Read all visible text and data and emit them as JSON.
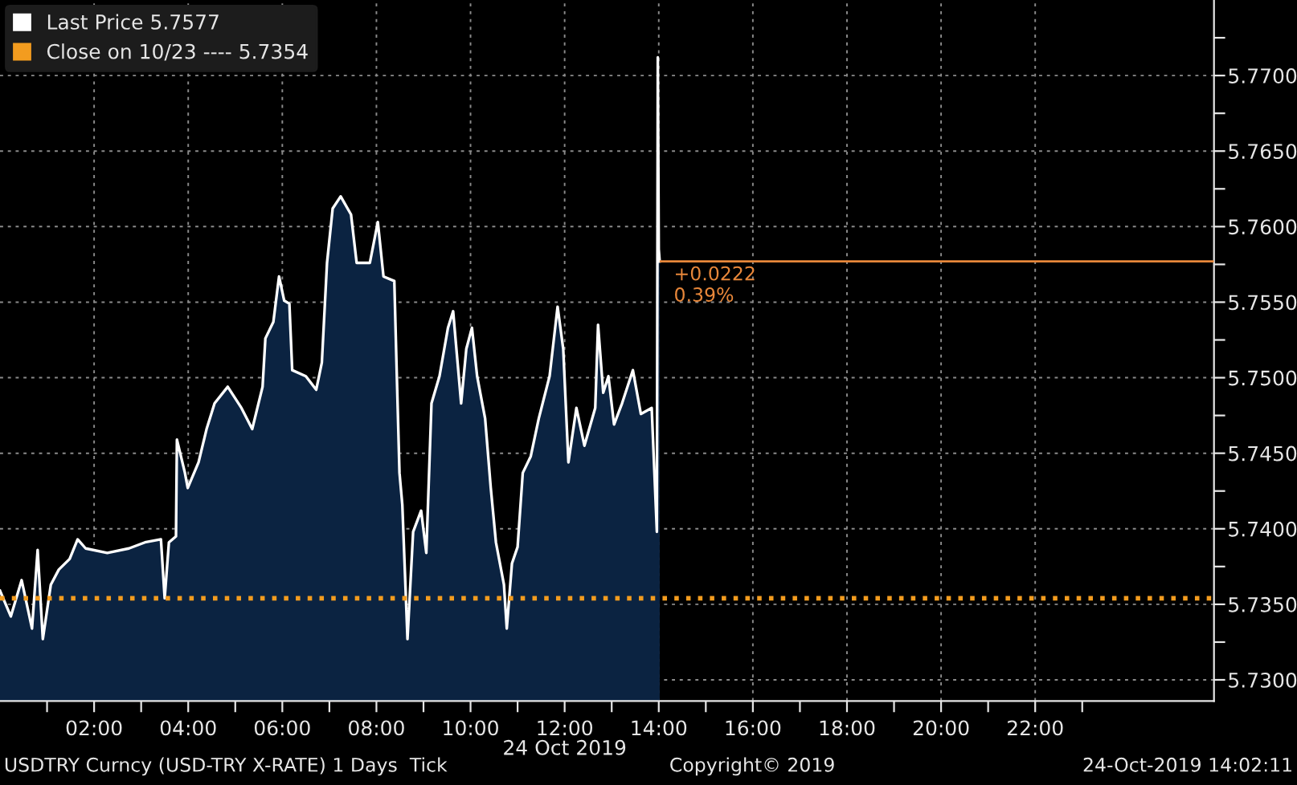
{
  "chart_data": {
    "type": "area",
    "xlabel": "24 Oct 2019",
    "x": [
      0,
      0.23,
      0.46,
      0.68,
      0.8,
      0.91,
      1.08,
      1.25,
      1.48,
      1.65,
      1.82,
      2.28,
      2.74,
      3.08,
      3.42,
      3.5,
      3.59,
      3.74,
      3.76,
      3.93,
      3.99,
      4.22,
      4.39,
      4.56,
      4.84,
      5.13,
      5.36,
      5.58,
      5.64,
      5.81,
      5.93,
      6.04,
      6.15,
      6.21,
      6.5,
      6.72,
      6.84,
      6.95,
      7.07,
      7.24,
      7.46,
      7.58,
      7.86,
      8.03,
      8.15,
      8.38,
      8.43,
      8.49,
      8.55,
      8.66,
      8.78,
      8.95,
      9.06,
      9.17,
      9.34,
      9.52,
      9.63,
      9.8,
      9.91,
      10.03,
      10.14,
      10.31,
      10.43,
      10.54,
      10.71,
      10.77,
      10.88,
      11.0,
      11.11,
      11.28,
      11.45,
      11.68,
      11.85,
      11.97,
      12.08,
      12.25,
      12.42,
      12.65,
      12.71,
      12.82,
      12.93,
      13.05,
      13.22,
      13.45,
      13.62,
      13.85,
      13.96,
      13.98,
      14.0,
      14.02
    ],
    "series": [
      {
        "name": "Last Price 5.7577",
        "color": "#ffffff",
        "values": [
          5.7359,
          5.7342,
          5.7366,
          5.7334,
          5.7386,
          5.7327,
          5.7363,
          5.7373,
          5.738,
          5.7393,
          5.7387,
          5.7384,
          5.7387,
          5.7391,
          5.7393,
          5.7354,
          5.7391,
          5.7395,
          5.7459,
          5.7437,
          5.7427,
          5.7444,
          5.7466,
          5.7483,
          5.7494,
          5.748,
          5.7466,
          5.7494,
          5.7526,
          5.7537,
          5.7567,
          5.7551,
          5.7549,
          5.7505,
          5.7501,
          5.7492,
          5.751,
          5.7576,
          5.7612,
          5.762,
          5.7608,
          5.7576,
          5.7576,
          5.7603,
          5.7567,
          5.7564,
          5.7505,
          5.7437,
          5.7416,
          5.7327,
          5.7398,
          5.7412,
          5.7384,
          5.7483,
          5.7501,
          5.7533,
          5.7544,
          5.7483,
          5.7519,
          5.7533,
          5.7501,
          5.7473,
          5.7427,
          5.7391,
          5.7363,
          5.7334,
          5.7377,
          5.7388,
          5.7437,
          5.7448,
          5.7473,
          5.7501,
          5.7547,
          5.7519,
          5.7444,
          5.748,
          5.7455,
          5.748,
          5.7535,
          5.749,
          5.7501,
          5.7469,
          5.7483,
          5.7505,
          5.7476,
          5.748,
          5.7398,
          5.7712,
          5.7585,
          5.7577
        ]
      }
    ],
    "xlim": [
      0,
      25.8
    ],
    "xticks": [
      {
        "value": 1,
        "label": null
      },
      {
        "value": 2,
        "label": "02:00"
      },
      {
        "value": 3,
        "label": null
      },
      {
        "value": 4,
        "label": "04:00"
      },
      {
        "value": 5,
        "label": null
      },
      {
        "value": 6,
        "label": "06:00"
      },
      {
        "value": 7,
        "label": null
      },
      {
        "value": 8,
        "label": "08:00"
      },
      {
        "value": 9,
        "label": null
      },
      {
        "value": 10,
        "label": "10:00"
      },
      {
        "value": 11,
        "label": null
      },
      {
        "value": 12,
        "label": "12:00"
      },
      {
        "value": 13,
        "label": null
      },
      {
        "value": 14,
        "label": "14:00"
      },
      {
        "value": 15,
        "label": null
      },
      {
        "value": 16,
        "label": "16:00"
      },
      {
        "value": 17,
        "label": null
      },
      {
        "value": 18,
        "label": "18:00"
      },
      {
        "value": 19,
        "label": null
      },
      {
        "value": 20,
        "label": "20:00"
      },
      {
        "value": 21,
        "label": null
      },
      {
        "value": 22,
        "label": "22:00"
      },
      {
        "value": 23,
        "label": null
      }
    ],
    "ylim": [
      5.7286,
      5.775
    ],
    "yticks": [
      {
        "value": 5.73,
        "label": "5.7300"
      },
      {
        "value": 5.7325,
        "label": null
      },
      {
        "value": 5.735,
        "label": "5.7350"
      },
      {
        "value": 5.7375,
        "label": null
      },
      {
        "value": 5.74,
        "label": "5.7400"
      },
      {
        "value": 5.7425,
        "label": null
      },
      {
        "value": 5.745,
        "label": "5.7450"
      },
      {
        "value": 5.7475,
        "label": null
      },
      {
        "value": 5.75,
        "label": "5.7500"
      },
      {
        "value": 5.7525,
        "label": null
      },
      {
        "value": 5.755,
        "label": "5.7550"
      },
      {
        "value": 5.7575,
        "label": null
      },
      {
        "value": 5.76,
        "label": "5.7600"
      },
      {
        "value": 5.7625,
        "label": null
      },
      {
        "value": 5.765,
        "label": "5.7650"
      },
      {
        "value": 5.7675,
        "label": null
      },
      {
        "value": 5.77,
        "label": "5.7700"
      },
      {
        "value": 5.7725,
        "label": null
      }
    ],
    "ref_lines": [
      {
        "axis": "y",
        "value": 5.7354,
        "label": "Close on 10/23 ---- 5.7354",
        "color": "#f39c1f",
        "line_style": "dotted"
      },
      {
        "axis": "y",
        "value": 5.7577,
        "color": "#e8873a",
        "line_style": "solid"
      }
    ],
    "annotations": [
      "USDTRY Curncy (USD-TRY X-RATE) 1 Days  Tick",
      "Copyright© 2019",
      "24-Oct-2019 14:02:11",
      "+0.0222",
      "0.39%"
    ],
    "grid": true,
    "legend": "top left",
    "line_style": "solid",
    "marker": "none"
  }
}
